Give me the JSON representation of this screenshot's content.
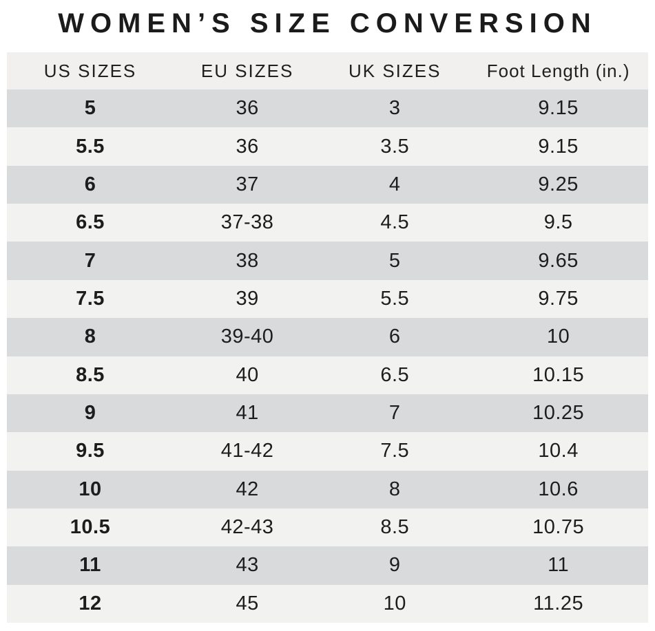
{
  "title": "WOMEN’S SIZE CONVERSION",
  "colors": {
    "header_bg": "#f1f0ef",
    "row_dark": "#d9dadb",
    "row_light": "#f2f2f1",
    "text": "#1d1d1d",
    "title_text": "#1b1b1b"
  },
  "chart_data": {
    "type": "table",
    "title": "WOMEN’S SIZE CONVERSION",
    "columns": [
      "US SIZES",
      "EU SIZES",
      "UK SIZES",
      "Foot Length (in.)"
    ],
    "rows": [
      [
        "5",
        "36",
        "3",
        "9.15"
      ],
      [
        "5.5",
        "36",
        "3.5",
        "9.15"
      ],
      [
        "6",
        "37",
        "4",
        "9.25"
      ],
      [
        "6.5",
        "37-38",
        "4.5",
        "9.5"
      ],
      [
        "7",
        "38",
        "5",
        "9.65"
      ],
      [
        "7.5",
        "39",
        "5.5",
        "9.75"
      ],
      [
        "8",
        "39-40",
        "6",
        "10"
      ],
      [
        "8.5",
        "40",
        "6.5",
        "10.15"
      ],
      [
        "9",
        "41",
        "7",
        "10.25"
      ],
      [
        "9.5",
        "41-42",
        "7.5",
        "10.4"
      ],
      [
        "10",
        "42",
        "8",
        "10.6"
      ],
      [
        "10.5",
        "42-43",
        "8.5",
        "10.75"
      ],
      [
        "11",
        "43",
        "9",
        "11"
      ],
      [
        "12",
        "45",
        "10",
        "11.25"
      ]
    ]
  }
}
